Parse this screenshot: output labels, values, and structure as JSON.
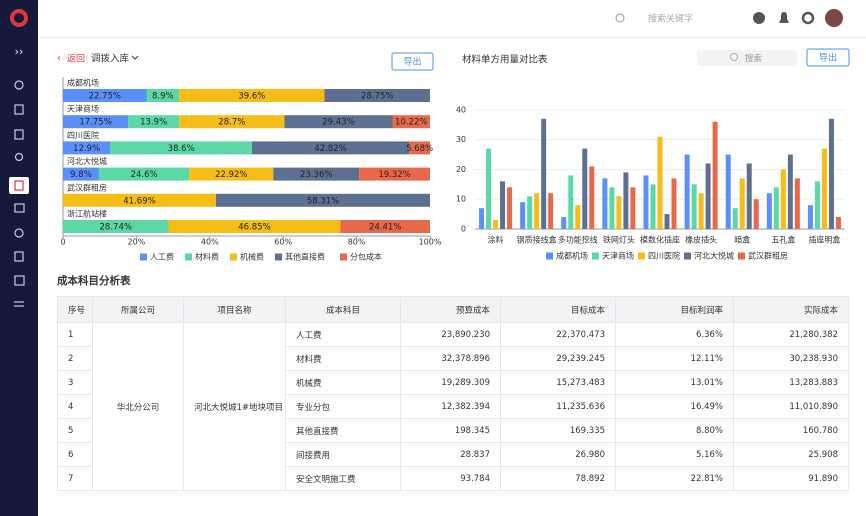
{
  "header": {
    "search_placeholder": "搜索关键字"
  },
  "left_panel": {
    "back": "返回",
    "title": "调拨入库",
    "export": "导出"
  },
  "right_panel": {
    "search_placeholder": "搜索",
    "export": "导出"
  },
  "chart_data": [
    {
      "type": "hbar-stacked",
      "categories": [
        "成都机场",
        "天津商场",
        "四川医院",
        "河北大悦城",
        "武汉群租房",
        "浙江航站楼"
      ],
      "series": [
        {
          "name": "人工费",
          "color": "#5b8ff9",
          "values": [
            22.75,
            17.75,
            12.9,
            9.8,
            null,
            null
          ],
          "value_labels": [
            "22.75%",
            "17.75%",
            "12.9%",
            "9.8%",
            null,
            null
          ]
        },
        {
          "name": "材料费",
          "color": "#5ad8a6",
          "values": [
            8.9,
            13.9,
            38.6,
            24.6,
            null,
            28.74
          ],
          "value_labels": [
            "8.9%",
            "13.9%",
            "38.6%",
            "24.6%",
            null,
            "28.74%"
          ]
        },
        {
          "name": "机械费",
          "color": "#f6bd16",
          "values": [
            39.6,
            28.7,
            null,
            22.92,
            41.69,
            46.85
          ],
          "value_labels": [
            "39.6%",
            "28.7%",
            null,
            "22.92%",
            "41.69%",
            "46.85%"
          ]
        },
        {
          "name": "其他直接费",
          "color": "#5d7092",
          "values": [
            28.75,
            29.43,
            42.82,
            23.36,
            58.31,
            null
          ],
          "value_labels": [
            "28.75%",
            "29.43%",
            "42.82%",
            "23.36%",
            "58.31%",
            null
          ]
        },
        {
          "name": "分包成本",
          "color": "#e8684a",
          "values": [
            null,
            10.22,
            5.68,
            19.32,
            null,
            24.41
          ],
          "value_labels": [
            null,
            "10.22%",
            "5.68%",
            "19.32%",
            null,
            "24.41%"
          ]
        }
      ],
      "xlim": [
        0,
        100
      ],
      "xticks": [
        0,
        {
          "value": 20,
          "label": "20%"
        },
        {
          "value": 40,
          "label": "40%"
        },
        {
          "value": 60,
          "label": "60%"
        },
        {
          "value": 80,
          "label": "80%"
        },
        {
          "value": 100,
          "label": "100%"
        }
      ],
      "grid": false
    },
    {
      "type": "bar",
      "title": "材料单方用量对比表",
      "categories": [
        "涂料",
        "钢质接线盒",
        "多功能挖线",
        "铁网灯头",
        "模数化插座",
        "橡皮插头",
        "暗盒",
        "五孔盒",
        "插座明盒"
      ],
      "series": [
        {
          "name": "成都机场",
          "color": "#5b8ff9",
          "values": [
            7,
            9,
            4,
            17,
            18,
            25,
            25,
            12,
            8
          ]
        },
        {
          "name": "天津商场",
          "color": "#5ad8a6",
          "values": [
            27,
            11,
            18,
            14,
            15,
            15,
            7,
            14,
            16
          ]
        },
        {
          "name": "四川医院",
          "color": "#f6bd16",
          "values": [
            3,
            12,
            8,
            11,
            31,
            12,
            17,
            20,
            27
          ]
        },
        {
          "name": "河北大悦城",
          "color": "#5d7092",
          "values": [
            16,
            37,
            27,
            19,
            5,
            22,
            22,
            25,
            37
          ]
        },
        {
          "name": "武汉群租房",
          "color": "#e8684a",
          "values": [
            14,
            12,
            21,
            14,
            17,
            36,
            10,
            17,
            4
          ]
        }
      ],
      "ylim": [
        0,
        45
      ],
      "yticks": [
        0,
        10,
        20,
        30,
        40
      ],
      "grid": true
    }
  ],
  "table": {
    "title": "成本科目分析表",
    "columns": [
      "序号",
      "所属公司",
      "项目名称",
      "成本科目",
      "预算成本",
      "目标成本",
      "目标利润率",
      "实际成本"
    ],
    "company": "华北分公司",
    "project": "河北大悦城1#地块项目",
    "rows": [
      [
        "1",
        "人工费",
        "23,890.230",
        "22,370.473",
        "6.36%",
        "21,280.382"
      ],
      [
        "2",
        "材料费",
        "32,378.896",
        "29,239.245",
        "12.11%",
        "30,238.930"
      ],
      [
        "3",
        "机械费",
        "19,289.309",
        "15,273.483",
        "13.01%",
        "13,283.883"
      ],
      [
        "4",
        "专业分包",
        "12,382.394",
        "11,235.636",
        "16.49%",
        "11,010.890"
      ],
      [
        "5",
        "其他直接费",
        "198.345",
        "169.335",
        "8.80%",
        "160.780"
      ],
      [
        "6",
        "间接费用",
        "28.837",
        "26.980",
        "5.16%",
        "25.908"
      ],
      [
        "7",
        "安全文明施工费",
        "93.784",
        "78.892",
        "22.81%",
        "91.890"
      ]
    ]
  }
}
